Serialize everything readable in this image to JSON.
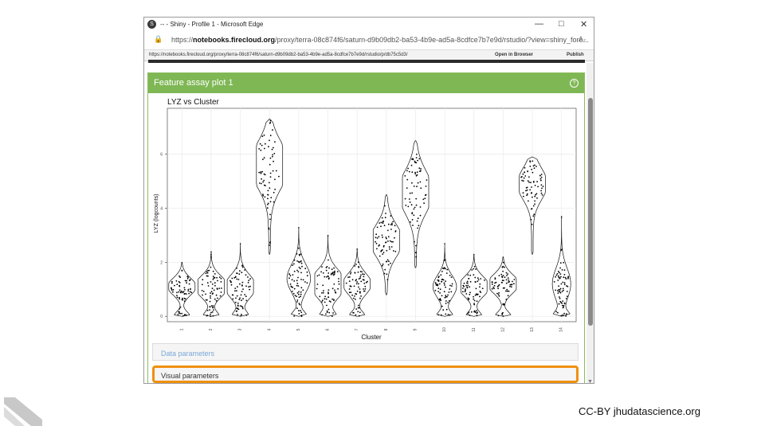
{
  "browser": {
    "title": "-- - Shiny - Profile 1 - Microsoft Edge",
    "controls": [
      "—",
      "□",
      "✕"
    ],
    "url_prefix": "https://",
    "url_domain": "notebooks.firecloud.org",
    "url_rest": "/proxy/terra-08c874f6/saturn-d9b09db2-ba53-4b9e-ad5a-8cdfce7b7e9d/rstudio/?view=shiny_fore...",
    "reader_label": "A₇",
    "bookmark_url": "https://notebooks.firecloud.org/proxy/terra-08c874f6/saturn-d9b09db2-ba53-4b9e-ad5a-8cdfce7b7e9d/rstudio/p/db75c5d3/",
    "open_in_browser": "Open in Browser",
    "publish": "Publish"
  },
  "panel": {
    "title": "Feature assay plot 1",
    "help_icon": "?"
  },
  "sections": {
    "data_parameters": "Data parameters",
    "visual_parameters": "Visual parameters"
  },
  "colors": {
    "panel_header": "#7fb755",
    "highlight": "#f0900e",
    "data_link": "#7aa7d6"
  },
  "chart_data": {
    "type": "violin",
    "title": "LYZ vs Cluster",
    "xlabel": "Cluster",
    "ylabel": "LYZ (logcounts)",
    "ylim": [
      -0.2,
      7.7
    ],
    "yticks": [
      0,
      2,
      4,
      6
    ],
    "grid": true,
    "categories": [
      "1",
      "2",
      "3",
      "4",
      "5",
      "6",
      "7",
      "8",
      "9",
      "10",
      "11",
      "12",
      "13",
      "14"
    ],
    "clusters": [
      {
        "name": "1",
        "min": 0,
        "max": 2.0,
        "mode": 1.1,
        "top": 1.1,
        "base": 0.6
      },
      {
        "name": "2",
        "min": 0,
        "max": 2.4,
        "mode": 1.1,
        "top": 1.3,
        "base": 0.6
      },
      {
        "name": "3",
        "min": 0,
        "max": 2.7,
        "mode": 1.1,
        "top": 1.2,
        "base": 0.6
      },
      {
        "name": "4",
        "min": 2.3,
        "max": 7.3,
        "mode": 5.6,
        "top": 1.5,
        "base": 0.1
      },
      {
        "name": "5",
        "min": 0,
        "max": 3.3,
        "mode": 1.4,
        "top": 0.9,
        "base": 0.6
      },
      {
        "name": "6",
        "min": 0,
        "max": 3.0,
        "mode": 1.2,
        "top": 1.45,
        "base": 0.6
      },
      {
        "name": "7",
        "min": 0,
        "max": 2.5,
        "mode": 1.2,
        "top": 1.1,
        "base": 0.6
      },
      {
        "name": "8",
        "min": 0.8,
        "max": 4.5,
        "mode": 2.8,
        "top": 1.2,
        "base": 0.1
      },
      {
        "name": "9",
        "min": 1.8,
        "max": 6.5,
        "mode": 4.6,
        "top": 1.3,
        "base": 0.1
      },
      {
        "name": "10",
        "min": 0,
        "max": 2.7,
        "mode": 1.1,
        "top": 0.9,
        "base": 0.6
      },
      {
        "name": "11",
        "min": 0,
        "max": 2.3,
        "mode": 1.1,
        "top": 1.2,
        "base": 0.6
      },
      {
        "name": "12",
        "min": 0,
        "max": 2.2,
        "mode": 1.2,
        "top": 1.2,
        "base": 0.6
      },
      {
        "name": "13",
        "min": 2.3,
        "max": 5.9,
        "mode": 4.9,
        "top": 1.1,
        "base": 0.1
      },
      {
        "name": "14",
        "min": 0,
        "max": 3.7,
        "mode": 1.2,
        "top": 0.7,
        "base": 0.6
      }
    ]
  },
  "footer": {
    "credit": "CC-BY  jhudatascience.org"
  }
}
